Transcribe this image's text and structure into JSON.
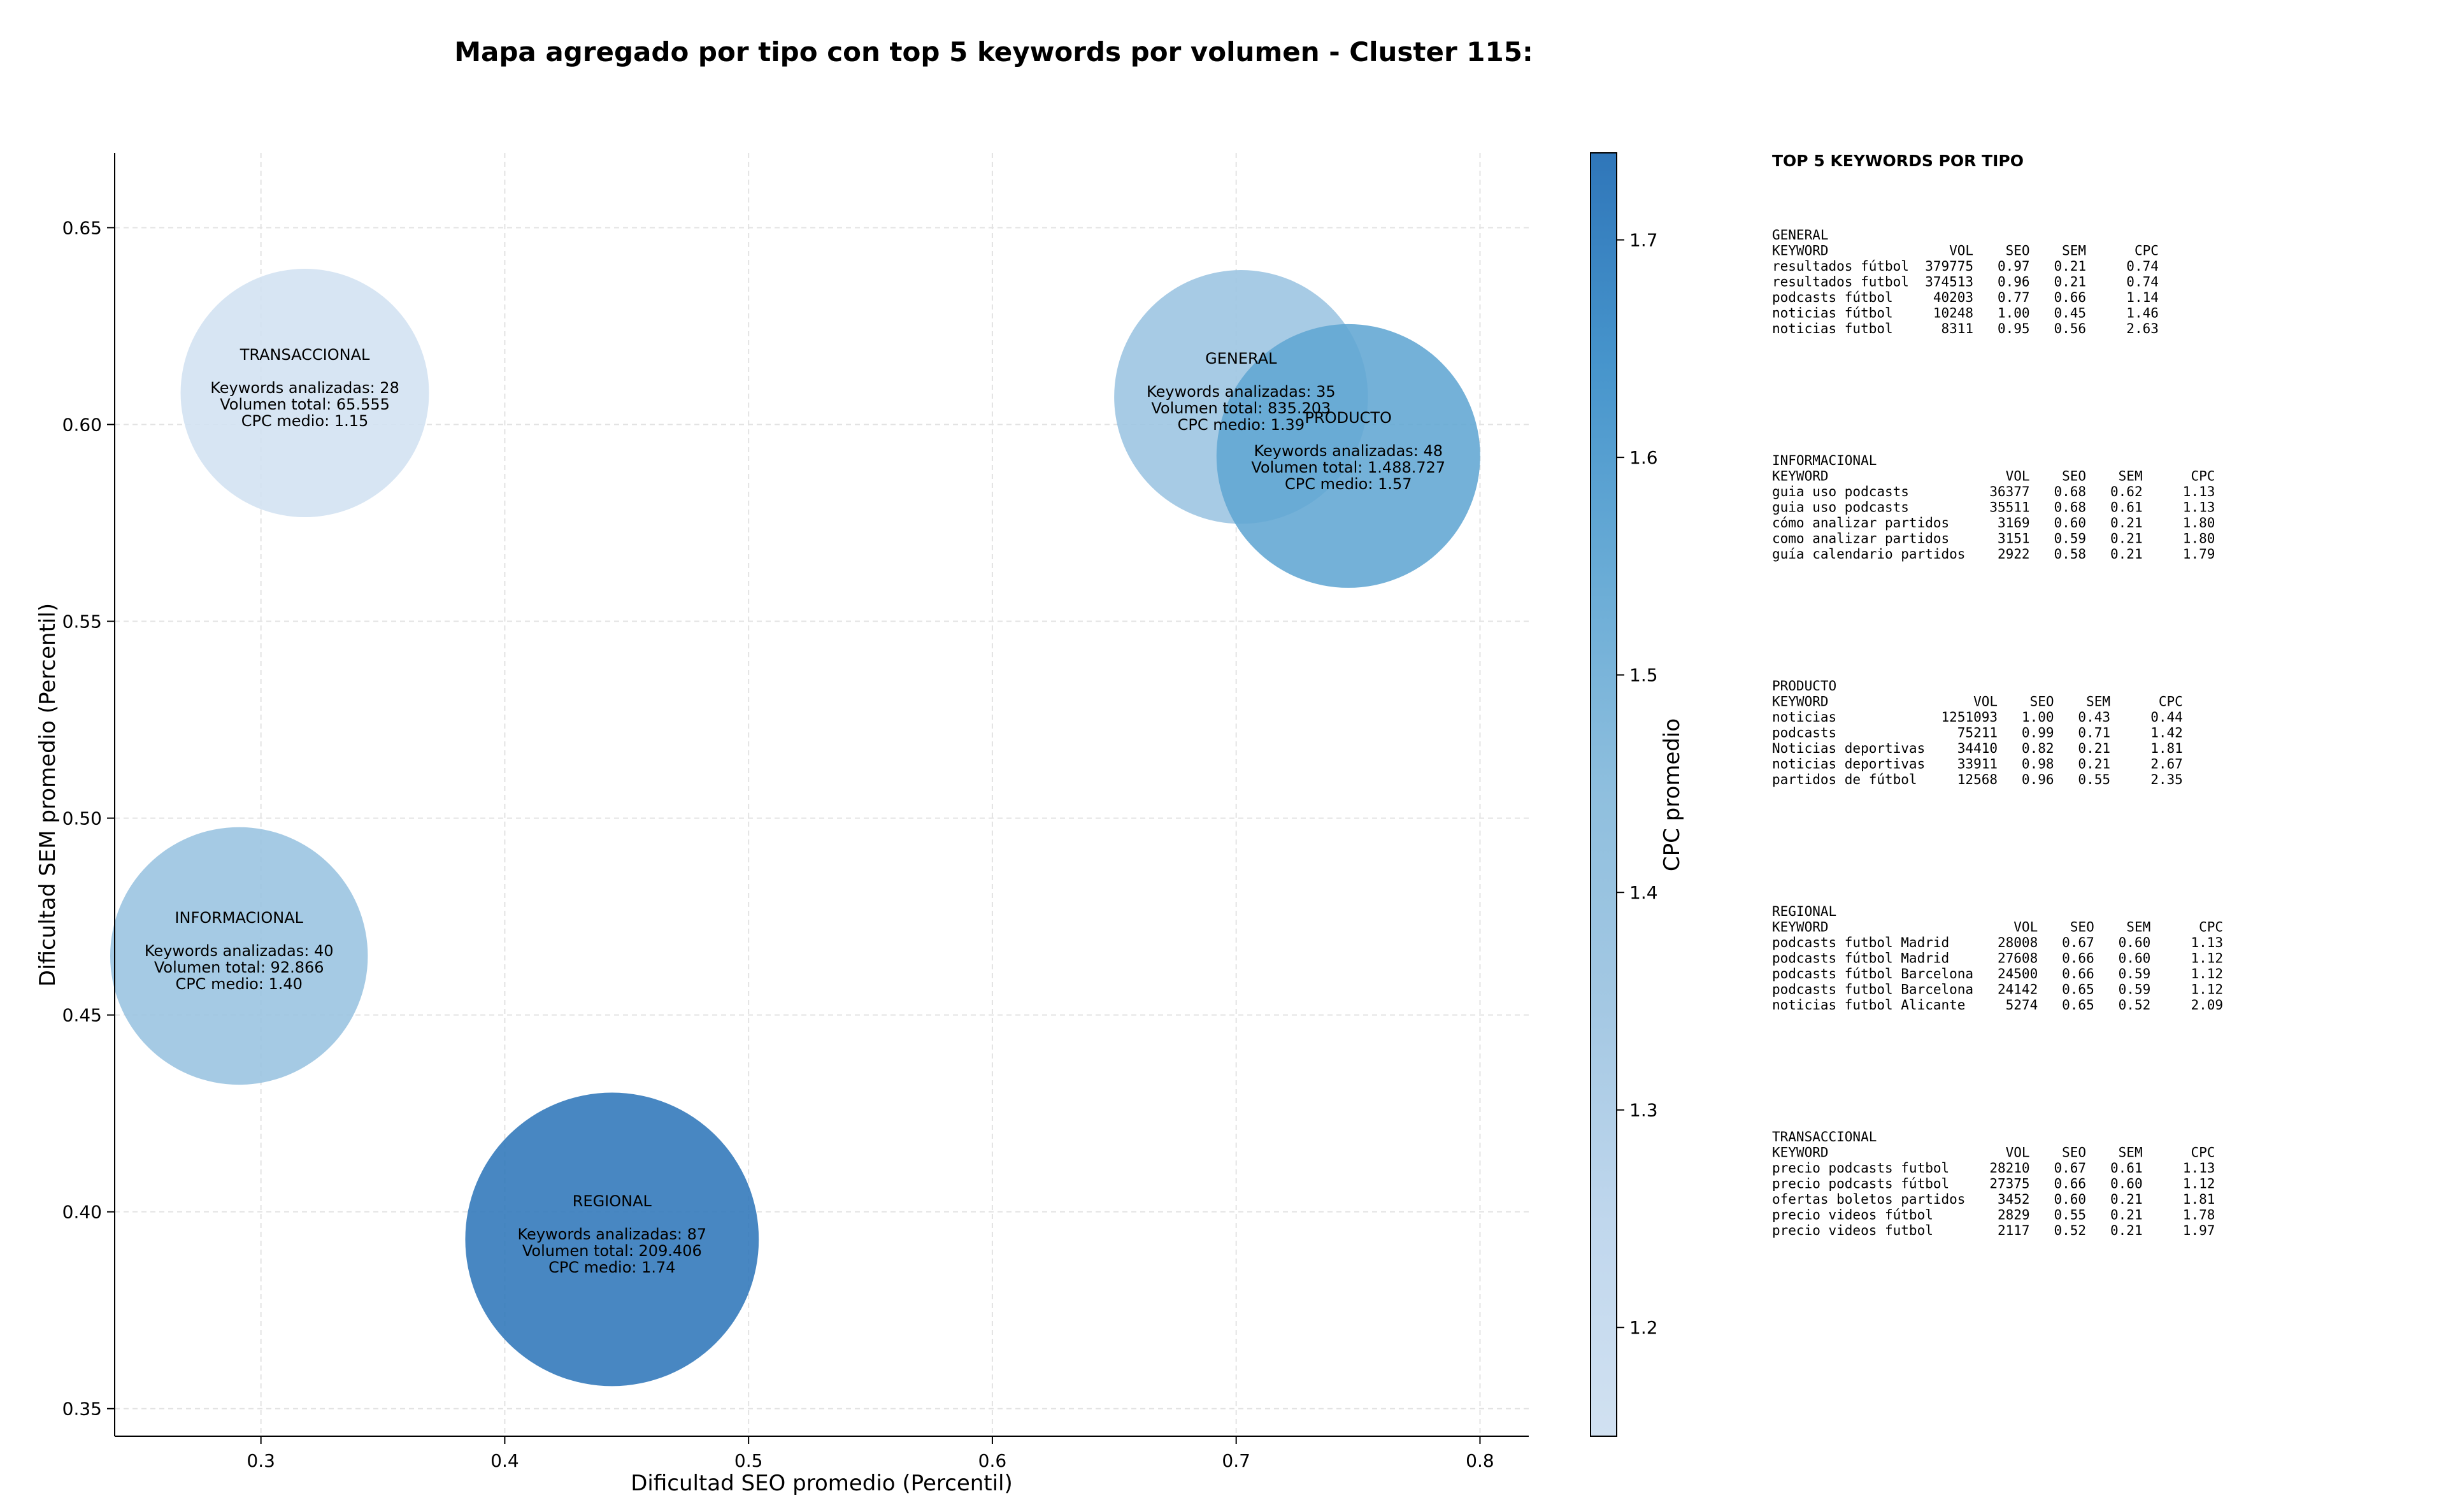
{
  "chart_data": {
    "type": "scatter",
    "title": "Mapa agregado por tipo con top 5 keywords por volumen - Cluster 115:",
    "xlabel": "Dificultad SEO promedio (Percentil)",
    "ylabel": "Dificultad SEM promedio (Percentil)",
    "xlim": [
      0.24,
      0.82
    ],
    "ylim": [
      0.343,
      0.669
    ],
    "xticks": [
      "0.3",
      "0.4",
      "0.5",
      "0.6",
      "0.7",
      "0.8"
    ],
    "yticks": [
      "0.35",
      "0.40",
      "0.45",
      "0.50",
      "0.55",
      "0.60",
      "0.65"
    ],
    "grid": true,
    "colorbar": {
      "label": "CPC promedio",
      "range": [
        1.15,
        1.74
      ],
      "ticks": [
        "1.2",
        "1.3",
        "1.4",
        "1.5",
        "1.6",
        "1.7"
      ],
      "colormap": [
        "#d1e1f1",
        "#c0d7ed",
        "#a4c8e3",
        "#8fbfde",
        "#6aacd6",
        "#4795cc",
        "#2f76b9"
      ]
    },
    "points": [
      {
        "name": "TRANSACCIONAL",
        "x": 0.318,
        "y": 0.608,
        "keywords": 28,
        "volume": 65555,
        "cpc": 1.15,
        "lines": [
          "Keywords analizadas: 28",
          "Volumen total: 65.555",
          "CPC medio: 1.15"
        ]
      },
      {
        "name": "GENERAL",
        "x": 0.702,
        "y": 0.607,
        "keywords": 35,
        "volume": 835203,
        "cpc": 1.39,
        "lines": [
          "Keywords analizadas: 35",
          "Volumen total: 835.203",
          "CPC medio: 1.39"
        ]
      },
      {
        "name": "PRODUCTO",
        "x": 0.746,
        "y": 0.592,
        "keywords": 48,
        "volume": 1488727,
        "cpc": 1.57,
        "lines": [
          "Keywords analizadas: 48",
          "Volumen total: 1.488.727",
          "CPC medio: 1.57"
        ]
      },
      {
        "name": "INFORMACIONAL",
        "x": 0.291,
        "y": 0.465,
        "keywords": 40,
        "volume": 92866,
        "cpc": 1.4,
        "lines": [
          "Keywords analizadas: 40",
          "Volumen total: 92.866",
          "CPC medio: 1.40"
        ]
      },
      {
        "name": "REGIONAL",
        "x": 0.444,
        "y": 0.393,
        "keywords": 87,
        "volume": 209406,
        "cpc": 1.74,
        "lines": [
          "Keywords analizadas: 87",
          "Volumen total: 209.406",
          "CPC medio: 1.74"
        ]
      }
    ],
    "side_panel": {
      "title": "TOP 5 KEYWORDS POR TIPO",
      "sections": [
        {
          "name": "GENERAL",
          "lines": [
            "KEYWORD               VOL    SEO    SEM      CPC",
            "resultados fútbol  379775   0.97   0.21     0.74",
            "resultados futbol  374513   0.96   0.21     0.74",
            "podcasts fútbol     40203   0.77   0.66     1.14",
            "noticias fútbol     10248   1.00   0.45     1.46",
            "noticias futbol      8311   0.95   0.56     2.63"
          ]
        },
        {
          "name": "INFORMACIONAL",
          "lines": [
            "KEYWORD                      VOL    SEO    SEM      CPC",
            "guia uso podcasts          36377   0.68   0.62     1.13",
            "guia uso podcasts          35511   0.68   0.61     1.13",
            "cómo analizar partidos      3169   0.60   0.21     1.80",
            "como analizar partidos      3151   0.59   0.21     1.80",
            "guía calendario partidos    2922   0.58   0.21     1.79"
          ]
        },
        {
          "name": "PRODUCTO",
          "lines": [
            "KEYWORD                  VOL    SEO    SEM      CPC",
            "noticias             1251093   1.00   0.43     0.44",
            "podcasts               75211   0.99   0.71     1.42",
            "Noticias deportivas    34410   0.82   0.21     1.81",
            "noticias deportivas    33911   0.98   0.21     2.67",
            "partidos de fútbol     12568   0.96   0.55     2.35"
          ]
        },
        {
          "name": "REGIONAL",
          "lines": [
            "KEYWORD                       VOL    SEO    SEM      CPC",
            "podcasts futbol Madrid      28008   0.67   0.60     1.13",
            "podcasts fútbol Madrid      27608   0.66   0.60     1.12",
            "podcasts fútbol Barcelona   24500   0.66   0.59     1.12",
            "podcasts futbol Barcelona   24142   0.65   0.59     1.12",
            "noticias futbol Alicante     5274   0.65   0.52     2.09"
          ]
        },
        {
          "name": "TRANSACCIONAL",
          "lines": [
            "KEYWORD                      VOL    SEO    SEM      CPC",
            "precio podcasts futbol     28210   0.67   0.61     1.13",
            "precio podcasts fútbol     27375   0.66   0.60     1.12",
            "ofertas boletos partidos    3452   0.60   0.21     1.81",
            "precio videos fútbol        2829   0.55   0.21     1.78",
            "precio videos futbol        2117   0.52   0.21     1.97"
          ]
        }
      ]
    }
  }
}
